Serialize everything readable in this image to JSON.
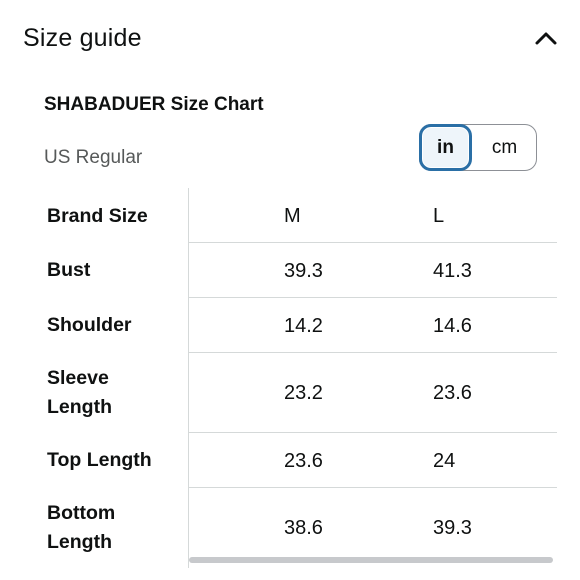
{
  "header": {
    "title": "Size guide",
    "collapse_icon": "chevron-up-icon"
  },
  "chart": {
    "title": "SHABADUER Size Chart",
    "region": "US Regular"
  },
  "units": {
    "options": [
      "in",
      "cm"
    ],
    "selected": "in",
    "accent": "#2a6fa6"
  },
  "table": {
    "header_label": "Brand Size",
    "sizes": [
      "M",
      "L"
    ],
    "rows": [
      {
        "label_lines": [
          "Bust"
        ],
        "values": [
          "39.3",
          "41.3"
        ]
      },
      {
        "label_lines": [
          "Shoulder"
        ],
        "values": [
          "14.2",
          "14.6"
        ]
      },
      {
        "label_lines": [
          "Sleeve",
          "Length"
        ],
        "values": [
          "23.2",
          "23.6"
        ]
      },
      {
        "label_lines": [
          "Top Length"
        ],
        "values": [
          "23.6",
          "24"
        ]
      },
      {
        "label_lines": [
          "Bottom",
          "Length"
        ],
        "values": [
          "38.6",
          "39.3"
        ]
      }
    ]
  }
}
